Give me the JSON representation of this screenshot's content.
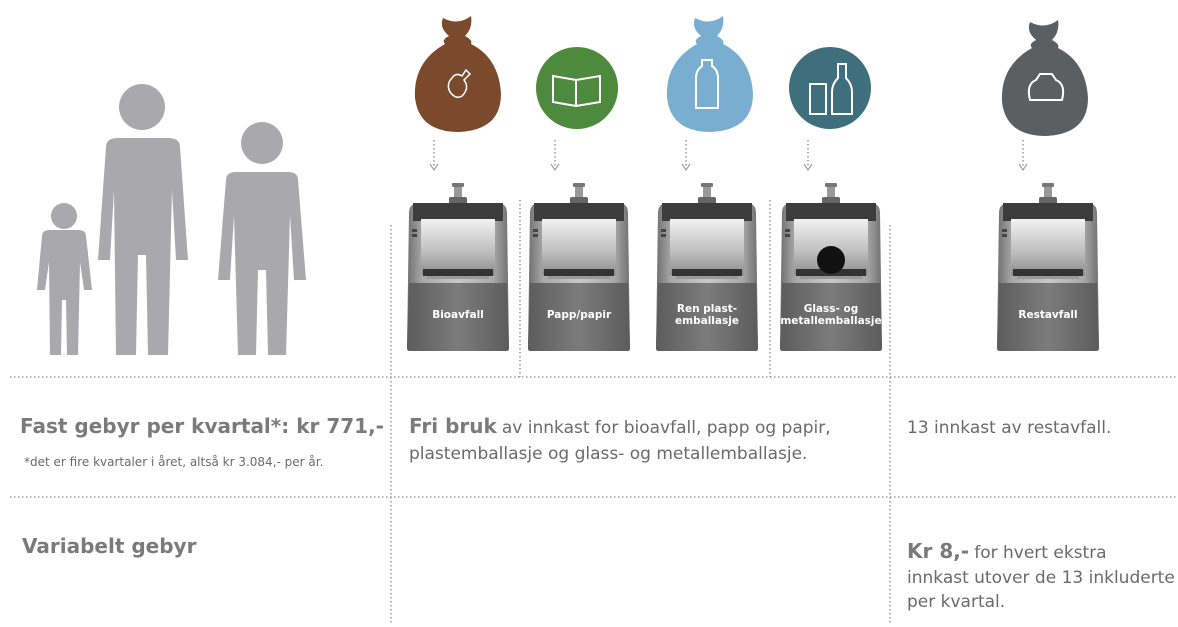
{
  "bins": [
    {
      "lines": [
        "Bioavfall"
      ]
    },
    {
      "lines": [
        "Papp/papir"
      ]
    },
    {
      "lines": [
        "Ren plast-",
        "emballasje"
      ]
    },
    {
      "lines": [
        "Glass- og",
        "metallemballasje"
      ]
    },
    {
      "lines": [
        "Restavfall"
      ]
    }
  ],
  "fixed_fee": {
    "title": "Fast gebyr per kvartal*:  kr 771,-",
    "note": "*det er fire kvartaler i året, altså kr 3.084,- per år.",
    "free_use_bold": "Fri bruk",
    "free_use_lines": [
      "av innkast for bioavfall, papp og papir,",
      "plastemballasje og glass- og metallemballasje."
    ],
    "residual": "13 innkast av restavfall."
  },
  "variable_fee": {
    "title": "Variabelt gebyr",
    "price_bold": "Kr 8,-",
    "price_lines": [
      "for hvert ekstra",
      "innkast utover de 13 inkluderte",
      "per kvartal."
    ]
  }
}
